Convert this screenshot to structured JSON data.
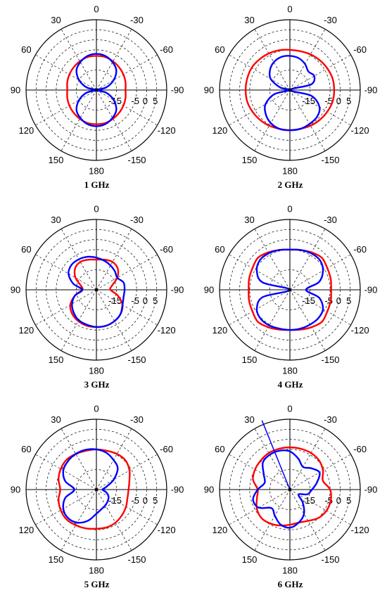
{
  "chart_data": [
    {
      "type": "polar",
      "caption": "1 GHz",
      "angle_ticks": [
        "0",
        "-30",
        "-60",
        "-90",
        "-120",
        "-150",
        "180",
        "150",
        "120",
        "90",
        "60",
        "30"
      ],
      "radial_ticks": [
        "-15",
        "-5",
        "0",
        "5"
      ],
      "r_range_db": [
        -25,
        10
      ],
      "series": [
        {
          "color": "#ff0000",
          "theta": [
            0,
            15,
            30,
            45,
            60,
            75,
            90,
            105,
            120,
            135,
            150,
            165,
            180,
            195,
            210,
            225,
            240,
            255,
            270,
            285,
            300,
            315,
            330,
            345
          ],
          "r_db": [
            -8,
            -8,
            -8.5,
            -9,
            -9.5,
            -10,
            -10.5,
            -10,
            -9.5,
            -9,
            -8.5,
            -8,
            -8,
            -8,
            -8.5,
            -9,
            -9.5,
            -10,
            -10.5,
            -10,
            -9.5,
            -9,
            -8.5,
            -8
          ]
        },
        {
          "color": "#0000ff",
          "theta": [
            0,
            15,
            30,
            45,
            60,
            75,
            90,
            105,
            120,
            135,
            150,
            165,
            180,
            195,
            210,
            225,
            240,
            255,
            270,
            285,
            300,
            315,
            330,
            345
          ],
          "r_db": [
            -7,
            -7.5,
            -9,
            -11,
            -15,
            -20,
            -25,
            -20,
            -15,
            -11,
            -9,
            -7.5,
            -7,
            -7.5,
            -9,
            -11,
            -15,
            -20,
            -25,
            -20,
            -15,
            -11,
            -9,
            -7.5
          ]
        }
      ]
    },
    {
      "type": "polar",
      "caption": "2 GHz",
      "angle_ticks": [
        "0",
        "-30",
        "-60",
        "-90",
        "-120",
        "-150",
        "180",
        "150",
        "120",
        "90",
        "60",
        "30"
      ],
      "radial_ticks": [
        "-15",
        "-5",
        "0",
        "5"
      ],
      "r_range_db": [
        -25,
        10
      ],
      "series": [
        {
          "color": "#ff0000",
          "theta": [
            0,
            15,
            30,
            45,
            60,
            75,
            90,
            105,
            120,
            135,
            150,
            165,
            180,
            195,
            210,
            225,
            240,
            255,
            270,
            285,
            300,
            315,
            330,
            345
          ],
          "r_db": [
            -5,
            -4.5,
            -4,
            -3.5,
            -3,
            -3,
            -3,
            -3,
            -3.5,
            -4,
            -4.5,
            -5,
            -5,
            -5,
            -4.5,
            -4,
            -3.5,
            -3,
            -3,
            -3,
            -3.5,
            -4,
            -4.5,
            -5
          ]
        },
        {
          "color": "#0000ff",
          "theta": [
            0,
            15,
            30,
            45,
            60,
            75,
            90,
            105,
            120,
            135,
            150,
            165,
            180,
            195,
            210,
            225,
            240,
            255,
            270,
            285,
            300,
            315,
            330,
            345
          ],
          "r_db": [
            -8,
            -8,
            -9,
            -11,
            -14,
            -20,
            -25,
            -17,
            -11,
            -8,
            -6,
            -5,
            -5,
            -5,
            -5.5,
            -6,
            -8,
            -14,
            -25,
            -14,
            -11,
            -12,
            -10,
            -8.5
          ]
        }
      ]
    },
    {
      "type": "polar",
      "caption": "3 GHz",
      "angle_ticks": [
        "0",
        "-30",
        "-60",
        "-90",
        "-120",
        "-150",
        "180",
        "150",
        "120",
        "90",
        "60",
        "30"
      ],
      "radial_ticks": [
        "-15",
        "-5",
        "0",
        "5"
      ],
      "r_range_db": [
        -25,
        10
      ],
      "series": [
        {
          "color": "#ff0000",
          "theta": [
            0,
            15,
            30,
            45,
            60,
            75,
            90,
            105,
            120,
            135,
            150,
            165,
            180,
            195,
            210,
            225,
            240,
            255,
            270,
            285,
            300,
            315,
            330,
            345
          ],
          "r_db": [
            -10,
            -9.5,
            -9,
            -10,
            -13,
            -17,
            -18,
            -14,
            -10,
            -8,
            -7,
            -6.5,
            -6.5,
            -6.5,
            -7,
            -8,
            -10,
            -14,
            -18,
            -17,
            -13,
            -10,
            -9,
            -9.5
          ]
        },
        {
          "color": "#0000ff",
          "theta": [
            0,
            15,
            30,
            45,
            60,
            75,
            90,
            105,
            120,
            135,
            150,
            165,
            180,
            195,
            210,
            225,
            240,
            255,
            270,
            285,
            300,
            315,
            330,
            345
          ],
          "r_db": [
            -9,
            -8,
            -7.5,
            -7.5,
            -9,
            -13,
            -18,
            -14,
            -11,
            -9,
            -7.5,
            -7,
            -6.5,
            -6.5,
            -7,
            -8,
            -10,
            -11,
            -11,
            -11,
            -13,
            -12,
            -11,
            -10
          ]
        }
      ]
    },
    {
      "type": "polar",
      "caption": "4 GHz",
      "angle_ticks": [
        "0",
        "-30",
        "-60",
        "-90",
        "-120",
        "-150",
        "180",
        "150",
        "120",
        "90",
        "60",
        "30"
      ],
      "radial_ticks": [
        "-15",
        "-5",
        "0",
        "5"
      ],
      "r_range_db": [
        -25,
        10
      ],
      "series": [
        {
          "color": "#ff0000",
          "theta": [
            0,
            15,
            30,
            45,
            60,
            75,
            90,
            105,
            120,
            135,
            150,
            165,
            180,
            195,
            210,
            225,
            240,
            255,
            270,
            285,
            300,
            315,
            330,
            345
          ],
          "r_db": [
            -5,
            -4.5,
            -3.5,
            -2.5,
            -3.5,
            -4,
            -4.5,
            -4,
            -3.5,
            -2.5,
            -3.5,
            -4.5,
            -5,
            -4.5,
            -3.5,
            -2.5,
            -3.5,
            -4,
            -4.5,
            -4,
            -3.5,
            -2.5,
            -3.5,
            -4.5
          ]
        },
        {
          "color": "#0000ff",
          "theta": [
            0,
            15,
            30,
            45,
            60,
            75,
            90,
            105,
            120,
            135,
            150,
            165,
            180,
            195,
            210,
            225,
            240,
            255,
            270,
            285,
            300,
            315,
            330,
            345
          ],
          "r_db": [
            -5,
            -4.5,
            -4,
            -4,
            -6,
            -11,
            -25,
            -11,
            -6,
            -4.5,
            -4.5,
            -5,
            -5,
            -5,
            -5,
            -5,
            -6,
            -10,
            -17,
            -10,
            -6,
            -4,
            -4,
            -4.5
          ]
        }
      ]
    },
    {
      "type": "polar",
      "caption": "5 GHz",
      "angle_ticks": [
        "0",
        "-30",
        "-60",
        "-90",
        "-120",
        "-150",
        "180",
        "150",
        "120",
        "90",
        "60",
        "30"
      ],
      "radial_ticks": [
        "-15",
        "-5",
        "0",
        "5"
      ],
      "r_range_db": [
        -25,
        10
      ],
      "series": [
        {
          "color": "#ff0000",
          "theta": [
            0,
            15,
            30,
            45,
            60,
            75,
            90,
            105,
            120,
            135,
            150,
            165,
            180,
            195,
            210,
            225,
            240,
            255,
            270,
            285,
            300,
            315,
            330,
            345
          ],
          "r_db": [
            -5,
            -5,
            -4.5,
            -4,
            -4.5,
            -5.5,
            -7,
            -5.5,
            -4.5,
            -4,
            -4.5,
            -5,
            -5.5,
            -5.5,
            -6,
            -7,
            -8,
            -9,
            -9,
            -8,
            -6,
            -4.5,
            -4.5,
            -5
          ]
        },
        {
          "color": "#0000ff",
          "theta": [
            0,
            15,
            30,
            45,
            60,
            75,
            90,
            105,
            120,
            135,
            150,
            165,
            180,
            195,
            210,
            225,
            240,
            255,
            270,
            285,
            300,
            315,
            330,
            345
          ],
          "r_db": [
            -5,
            -4.5,
            -4.5,
            -5,
            -6,
            -9,
            -14,
            -9,
            -6,
            -5,
            -6,
            -9,
            -13,
            -15,
            -16,
            -17,
            -18,
            -20,
            -22,
            -20,
            -15,
            -10,
            -8,
            -6
          ]
        }
      ]
    },
    {
      "type": "polar",
      "caption": "6 GHz",
      "angle_ticks": [
        "0",
        "-30",
        "-60",
        "-90",
        "-120",
        "-150",
        "180",
        "150",
        "120",
        "90",
        "60",
        "30"
      ],
      "radial_ticks": [
        "-15",
        "-5",
        "0",
        "5"
      ],
      "r_range_db": [
        -25,
        10
      ],
      "series": [
        {
          "color": "#ff0000",
          "theta": [
            0,
            15,
            30,
            45,
            60,
            75,
            90,
            105,
            120,
            135,
            150,
            165,
            180,
            195,
            210,
            225,
            240,
            255,
            270,
            285,
            300,
            315,
            330,
            345
          ],
          "r_db": [
            -4,
            -4,
            -4,
            -4.5,
            -5,
            -6,
            -9,
            -8,
            -6,
            -5,
            -5.5,
            -6.5,
            -7.5,
            -8,
            -7,
            -5,
            -4,
            -4,
            -5,
            -8,
            -6,
            -4.5,
            -4,
            -4
          ]
        },
        {
          "color": "#0000ff",
          "theta": [
            0,
            15,
            30,
            45,
            60,
            75,
            90,
            105,
            120,
            135,
            150,
            165,
            180,
            195,
            210,
            225,
            240,
            255,
            270,
            285,
            300,
            315,
            330,
            345
          ],
          "r_db": [
            -6,
            -5,
            -5,
            -6,
            -10,
            -12,
            -9,
            -6,
            -7,
            -12,
            -10,
            -7,
            -6,
            -8,
            -11,
            -16,
            -20,
            -16,
            -14,
            -11,
            -8,
            -10,
            -12,
            -9
          ]
        }
      ],
      "marker_line_theta": 22
    }
  ]
}
